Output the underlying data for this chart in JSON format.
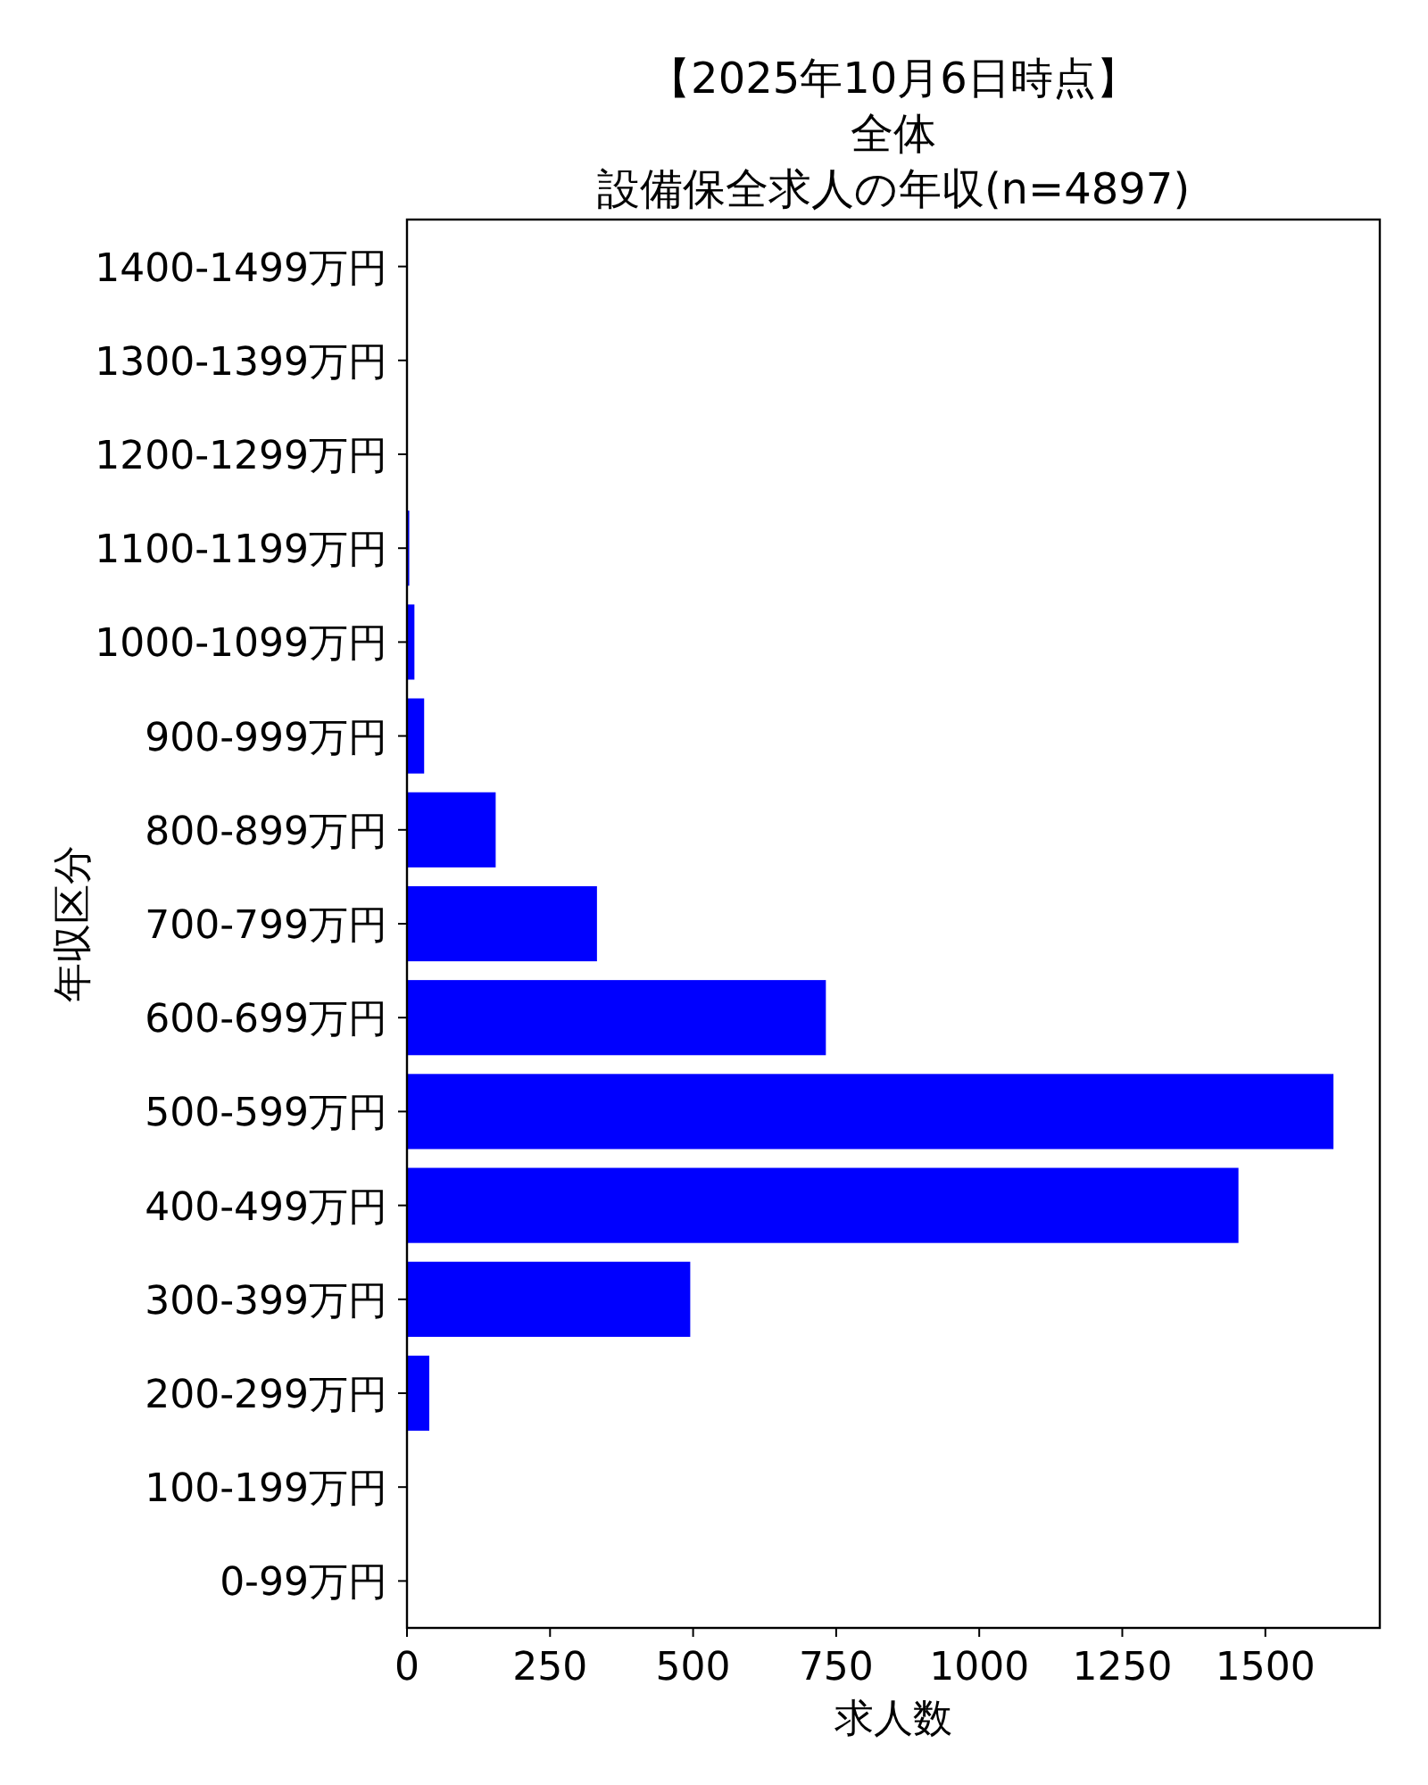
{
  "chart_data": {
    "type": "bar",
    "orientation": "horizontal",
    "title": "【2025年10月6日時点】",
    "subtitle": "全体",
    "annotations": [
      "設備保全求人の年収(n=4897)"
    ],
    "xlabel": "求人数",
    "ylabel": "年収区分",
    "categories": [
      "1400-1499万円",
      "1300-1399万円",
      "1200-1299万円",
      "1100-1199万円",
      "1000-1099万円",
      "900-999万円",
      "800-899万円",
      "700-799万円",
      "600-699万円",
      "500-599万円",
      "400-499万円",
      "300-399万円",
      "200-299万円",
      "100-199万円",
      "0-99万円"
    ],
    "values": [
      0,
      0,
      0,
      4,
      13,
      30,
      155,
      332,
      732,
      1619,
      1453,
      495,
      39,
      0,
      0
    ],
    "color": "#0000ff",
    "xlim": [
      0,
      1700
    ],
    "xticks": [
      0,
      250,
      500,
      750,
      1000,
      1250,
      1500
    ],
    "grid": false
  }
}
